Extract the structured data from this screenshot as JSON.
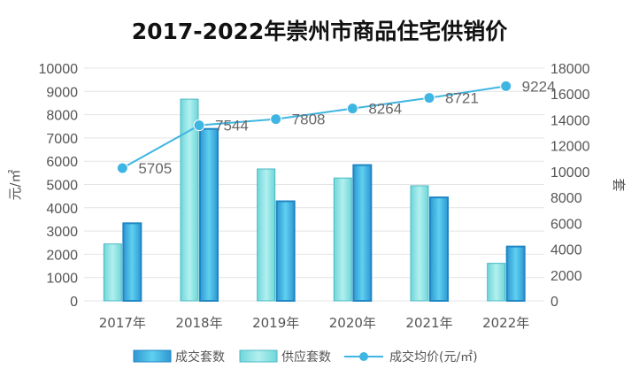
{
  "chart_data": {
    "type": "bar",
    "title": "2017-2022年崇州市商品住宅供销价",
    "categories": [
      "2017年",
      "2018年",
      "2019年",
      "2020年",
      "2021年",
      "2022年"
    ],
    "series": [
      {
        "name": "成交套数",
        "type": "bar",
        "axis": "right",
        "values": [
          6000,
          13300,
          7700,
          10500,
          8000,
          4200
        ]
      },
      {
        "name": "供应套数",
        "type": "bar",
        "axis": "right",
        "values": [
          4400,
          15600,
          10200,
          9500,
          8900,
          2900
        ]
      },
      {
        "name": "成交均价(元/㎡)",
        "type": "line",
        "axis": "left",
        "values": [
          5705,
          7544,
          7808,
          8264,
          8721,
          9224
        ]
      }
    ],
    "y_left": {
      "label": "元/㎡",
      "min": 0,
      "max": 10000,
      "step": 1000
    },
    "y_right": {
      "label": "套",
      "min": 0,
      "max": 18000,
      "step": 2000
    },
    "legend_position": "bottom",
    "colors": {
      "deal_bar": "#3fb6e2",
      "deal_bar_edge": "#1f86c4",
      "supply_bar": "#84e1e3",
      "supply_bar_edge": "#49b9c4",
      "line": "#3fb6e2",
      "grid": "#e4e4e4"
    }
  }
}
